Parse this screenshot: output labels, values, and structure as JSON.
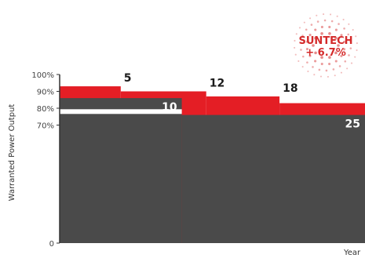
{
  "chart_data": {
    "type": "area",
    "xlabel": "Year",
    "ylabel": "Warranted Power Output",
    "ylim": [
      0,
      100
    ],
    "xlim": [
      0,
      25
    ],
    "y_ticks": [
      {
        "value": 0,
        "label": "0"
      },
      {
        "value": 70,
        "label": "70%"
      },
      {
        "value": 80,
        "label": "80%"
      },
      {
        "value": 90,
        "label": "90%"
      },
      {
        "value": 100,
        "label": "100%"
      }
    ],
    "series": [
      {
        "name": "SUNTECH + 6.7%",
        "color": "#e41e25",
        "steps": [
          {
            "x0": 0,
            "x1": 5,
            "y": 93
          },
          {
            "x0": 5,
            "x1": 12,
            "y": 90
          },
          {
            "x0": 12,
            "x1": 18,
            "y": 87
          },
          {
            "x0": 18,
            "x1": 25,
            "y": 83
          }
        ]
      },
      {
        "name": "",
        "color": "#4a4a4a",
        "steps": [
          {
            "x0": 0,
            "x1": 10,
            "y": 86
          },
          {
            "x0": 10,
            "x1": 25,
            "y": 76
          }
        ]
      }
    ],
    "reference_line": {
      "color": "#ffffff",
      "x0": 0,
      "x1": 10,
      "y": 78
    },
    "step_labels": [
      {
        "text": "5",
        "x": 5,
        "y": 93,
        "style": "dark"
      },
      {
        "text": "12",
        "x": 12,
        "y": 90,
        "style": "dark"
      },
      {
        "text": "18",
        "x": 18,
        "y": 87,
        "style": "dark"
      },
      {
        "text": "10",
        "x": 10,
        "y": 86,
        "style": "light"
      },
      {
        "text": "25",
        "x": 25,
        "y": 76,
        "style": "light"
      }
    ],
    "badge": {
      "line1": "SUNTECH",
      "line2": "+ 6.7%",
      "color": "#d42a2a"
    }
  }
}
